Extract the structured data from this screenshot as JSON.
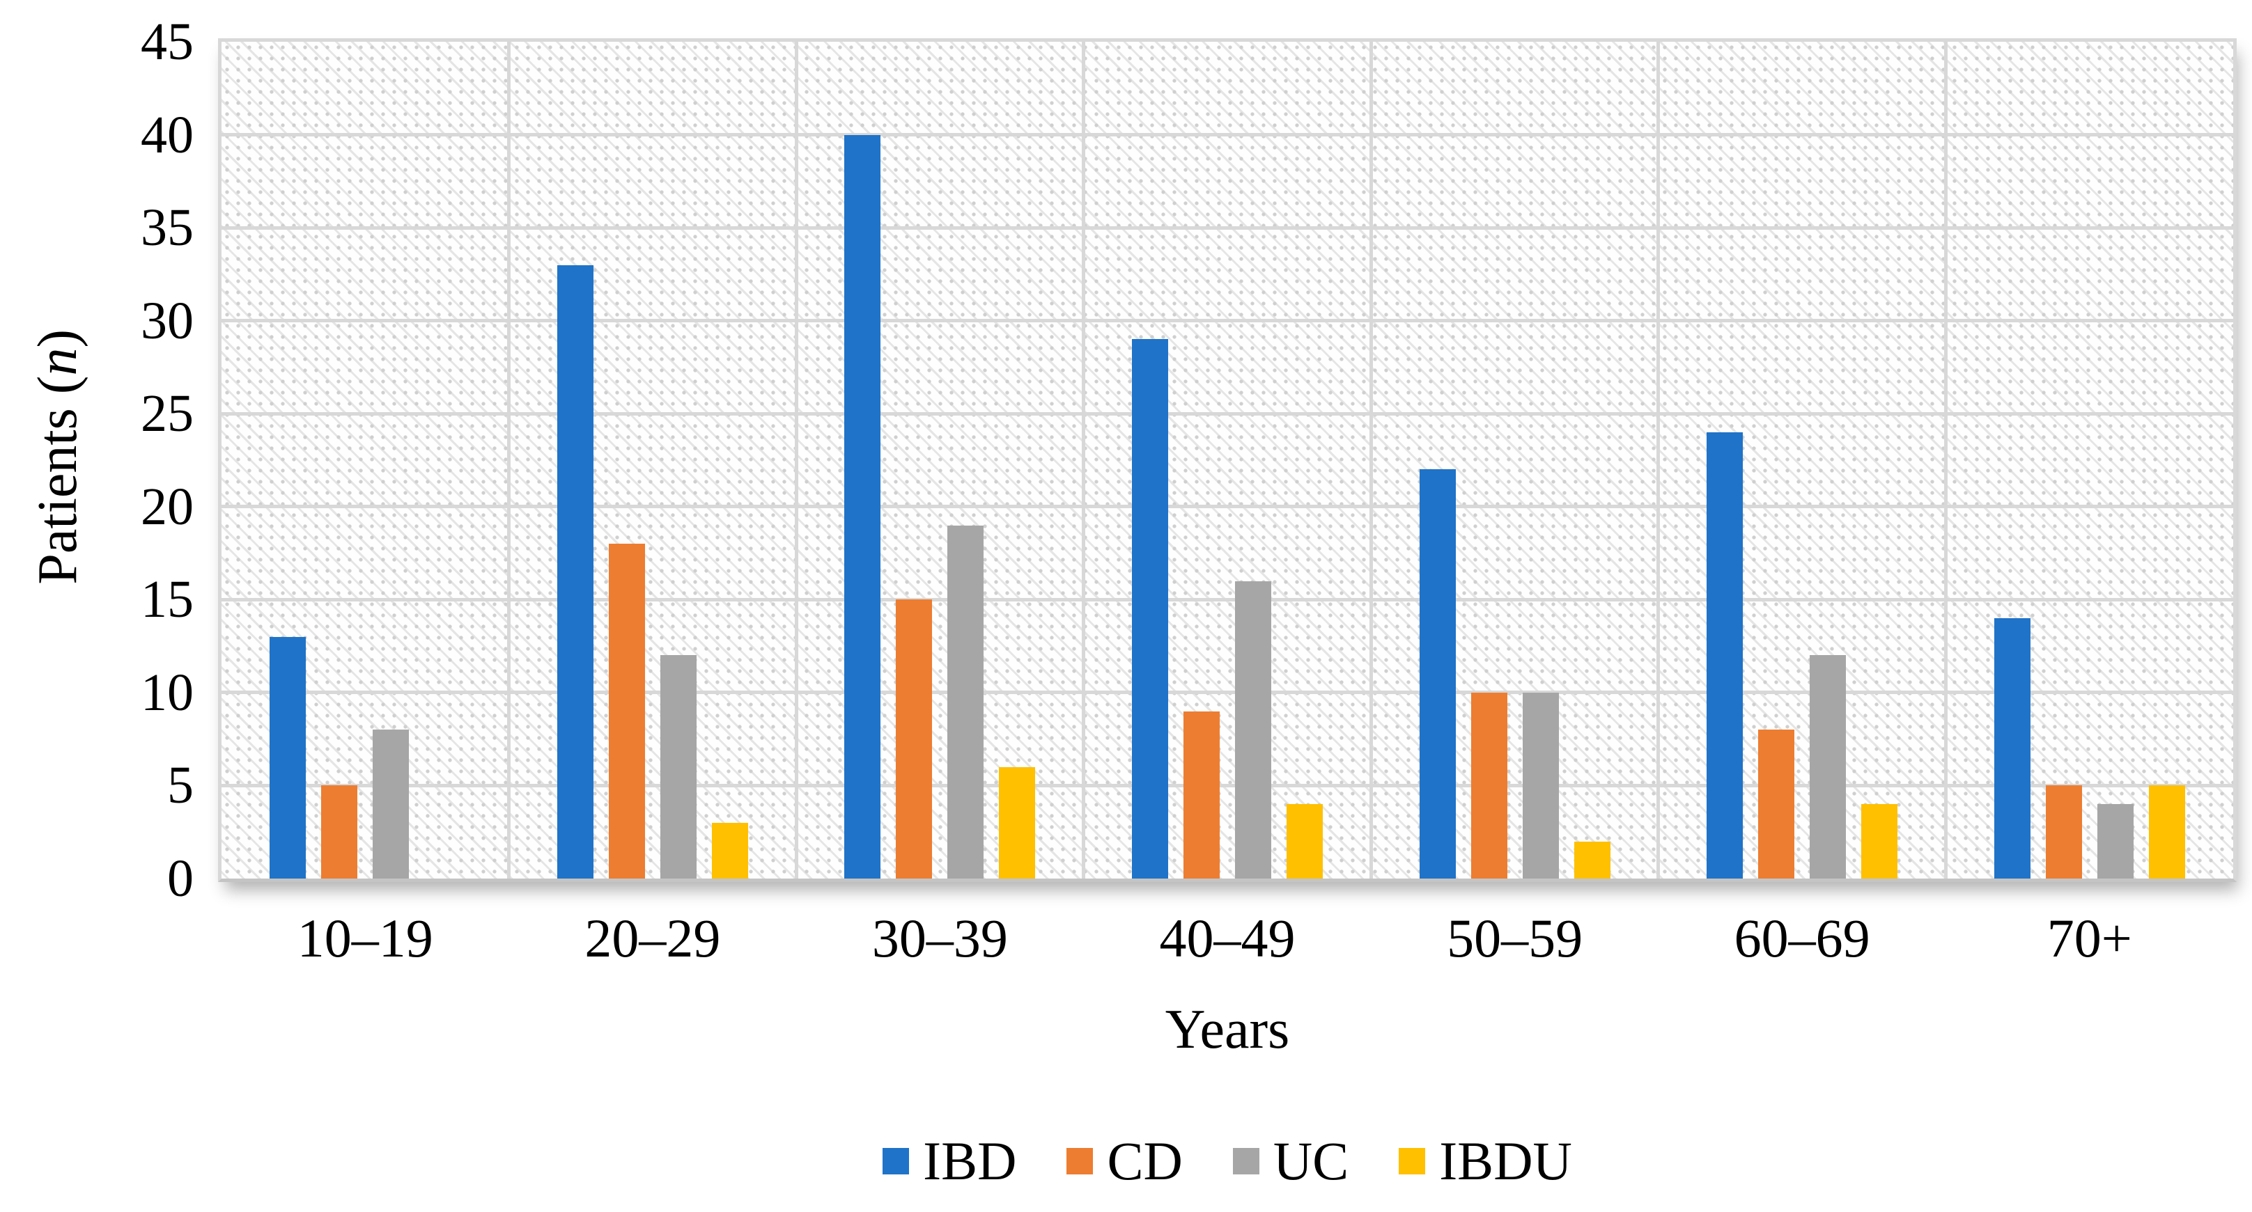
{
  "chart_data": {
    "type": "bar",
    "title": "",
    "xlabel": "Years",
    "ylabel": "Patients (n)",
    "ylabel_parts": [
      "Patients (",
      "n",
      ")"
    ],
    "categories": [
      "10–19",
      "20–29",
      "30–39",
      "40–49",
      "50–59",
      "60–69",
      "70+"
    ],
    "series": [
      {
        "name": "IBD",
        "color": "#1F73C8",
        "values": [
          13,
          33,
          40,
          29,
          22,
          24,
          14
        ]
      },
      {
        "name": "CD",
        "color": "#ED7D31",
        "values": [
          5,
          18,
          15,
          9,
          10,
          8,
          5
        ]
      },
      {
        "name": "UC",
        "color": "#A6A6A6",
        "values": [
          8,
          12,
          19,
          16,
          10,
          12,
          4
        ]
      },
      {
        "name": "IBDU",
        "color": "#FFC000",
        "values": [
          0,
          3,
          6,
          4,
          2,
          4,
          5
        ]
      }
    ],
    "ylim": [
      0,
      45
    ],
    "yticks": [
      0,
      5,
      10,
      15,
      20,
      25,
      30,
      35,
      40,
      45
    ],
    "grid": true,
    "legend_position": "bottom",
    "plot_pattern": "diagonal-hatch",
    "colors": {
      "gridline": "#D8D8D8",
      "axis_line": "#C4C4C4",
      "text": "#000000",
      "background": "#FFFFFF"
    }
  }
}
